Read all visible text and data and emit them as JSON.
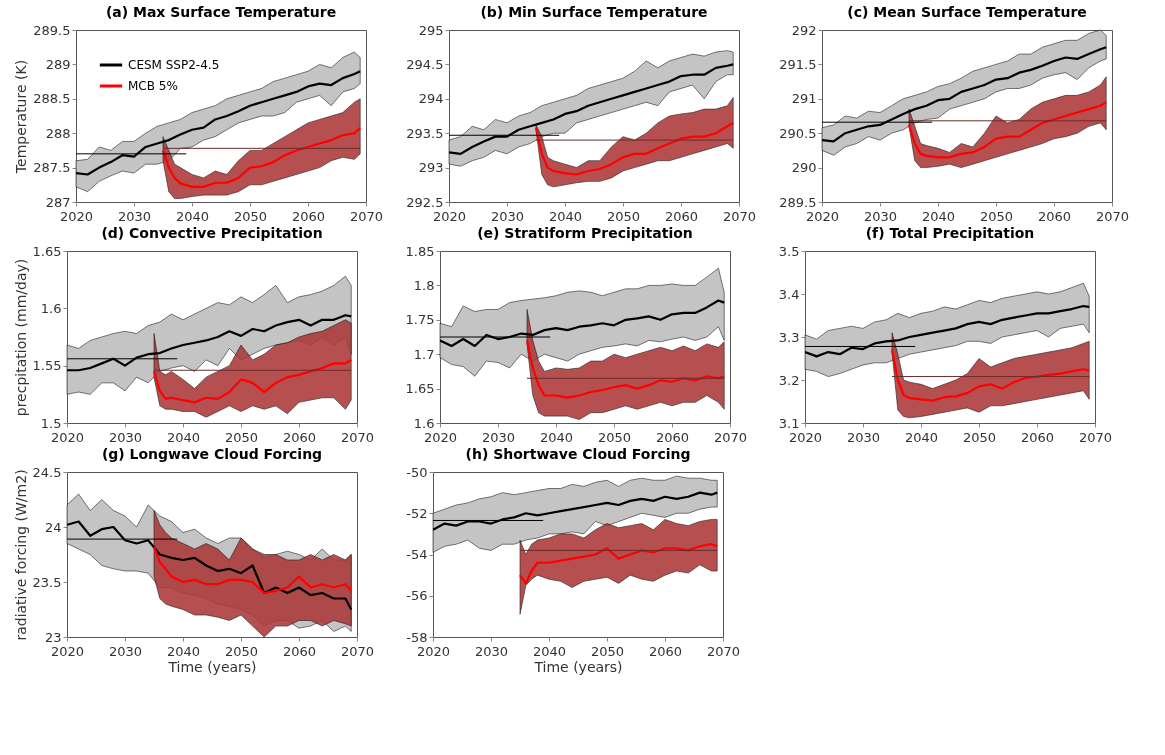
{
  "chart_data": [
    {
      "type": "line",
      "title": "(a) Max Surface Temperature",
      "ylabel": "Temperature (K)",
      "xlim": [
        2020,
        2070
      ],
      "xticks": [
        2020,
        2030,
        2040,
        2050,
        2060,
        2070
      ],
      "ylim": [
        287,
        289.5
      ],
      "yticks": [
        287,
        287.5,
        288,
        288.5,
        289,
        289.5
      ],
      "legend": "top left",
      "series": [
        {
          "name": "CESM SSP2-4.5",
          "color": "#000000",
          "x": [
            2020,
            2022,
            2024,
            2026,
            2028,
            2030,
            2032,
            2034,
            2036,
            2038,
            2040,
            2042,
            2044,
            2046,
            2048,
            2050,
            2052,
            2054,
            2056,
            2058,
            2060,
            2062,
            2064,
            2066,
            2068,
            2069
          ],
          "values": [
            287.42,
            287.4,
            287.5,
            287.58,
            287.68,
            287.66,
            287.8,
            287.85,
            287.9,
            287.98,
            288.05,
            288.08,
            288.2,
            288.25,
            288.32,
            288.4,
            288.45,
            288.5,
            288.55,
            288.6,
            288.68,
            288.72,
            288.7,
            288.8,
            288.86,
            288.9
          ],
          "lower": [
            287.22,
            287.15,
            287.3,
            287.38,
            287.45,
            287.42,
            287.55,
            287.55,
            287.6,
            287.78,
            287.8,
            287.9,
            287.95,
            288.05,
            288.15,
            288.2,
            288.25,
            288.25,
            288.3,
            288.45,
            288.5,
            288.55,
            288.4,
            288.6,
            288.65,
            288.72
          ],
          "upper": [
            287.6,
            287.62,
            287.8,
            287.75,
            287.88,
            287.88,
            288.0,
            288.1,
            288.15,
            288.2,
            288.3,
            288.35,
            288.4,
            288.5,
            288.55,
            288.6,
            288.65,
            288.75,
            288.8,
            288.85,
            288.9,
            289.0,
            288.95,
            289.1,
            289.18,
            289.1
          ]
        },
        {
          "name": "MCB 5%",
          "color": "#ff0000",
          "x": [
            2035,
            2036,
            2037,
            2038,
            2040,
            2042,
            2044,
            2046,
            2048,
            2050,
            2052,
            2054,
            2056,
            2058,
            2060,
            2062,
            2064,
            2066,
            2068,
            2069
          ],
          "values": [
            287.75,
            287.5,
            287.35,
            287.27,
            287.22,
            287.22,
            287.28,
            287.28,
            287.35,
            287.5,
            287.52,
            287.58,
            287.68,
            287.75,
            287.8,
            287.85,
            287.9,
            287.97,
            288.0,
            288.08
          ],
          "lower": [
            287.6,
            287.15,
            287.05,
            287.05,
            287.08,
            287.1,
            287.1,
            287.1,
            287.15,
            287.25,
            287.25,
            287.3,
            287.35,
            287.4,
            287.45,
            287.5,
            287.6,
            287.65,
            287.62,
            287.7
          ],
          "upper": [
            287.95,
            287.75,
            287.55,
            287.5,
            287.4,
            287.35,
            287.45,
            287.4,
            287.6,
            287.75,
            287.75,
            287.85,
            287.95,
            288.05,
            288.15,
            288.2,
            288.25,
            288.3,
            288.45,
            288.5
          ]
        },
        {
          "color": "#000000",
          "x": [
            2020,
            2039
          ],
          "values": [
            287.7,
            287.7
          ]
        },
        {
          "color": "#6b2a2a",
          "x": [
            2035,
            2069
          ],
          "values": [
            287.78,
            287.78
          ]
        }
      ]
    },
    {
      "type": "line",
      "title": "(b) Min Surface Temperature",
      "xlim": [
        2020,
        2070
      ],
      "xticks": [
        2020,
        2030,
        2040,
        2050,
        2060,
        2070
      ],
      "ylim": [
        292.5,
        295
      ],
      "yticks": [
        292.5,
        293,
        293.5,
        294,
        294.5,
        295
      ],
      "series": [
        {
          "color": "#000000",
          "x": [
            2020,
            2022,
            2024,
            2026,
            2028,
            2030,
            2032,
            2034,
            2036,
            2038,
            2040,
            2042,
            2044,
            2046,
            2048,
            2050,
            2052,
            2054,
            2056,
            2058,
            2060,
            2062,
            2064,
            2066,
            2068,
            2069
          ],
          "values": [
            293.22,
            293.2,
            293.3,
            293.38,
            293.45,
            293.45,
            293.55,
            293.6,
            293.65,
            293.7,
            293.78,
            293.82,
            293.9,
            293.95,
            294.0,
            294.05,
            294.1,
            294.15,
            294.2,
            294.25,
            294.33,
            294.35,
            294.35,
            294.45,
            294.48,
            294.5
          ],
          "lower": [
            293.05,
            293.02,
            293.1,
            293.15,
            293.25,
            293.2,
            293.3,
            293.35,
            293.45,
            293.5,
            293.5,
            293.65,
            293.7,
            293.75,
            293.8,
            293.85,
            293.9,
            293.95,
            293.9,
            294.1,
            294.15,
            294.2,
            294.0,
            294.25,
            294.35,
            294.35
          ],
          "upper": [
            293.4,
            293.45,
            293.6,
            293.55,
            293.7,
            293.65,
            293.75,
            293.8,
            293.9,
            293.95,
            294.0,
            294.05,
            294.15,
            294.2,
            294.25,
            294.3,
            294.4,
            294.55,
            294.45,
            294.55,
            294.6,
            294.65,
            294.62,
            294.68,
            294.7,
            294.68
          ]
        },
        {
          "color": "#ff0000",
          "x": [
            2035,
            2036,
            2037,
            2038,
            2040,
            2042,
            2044,
            2046,
            2048,
            2050,
            2052,
            2054,
            2056,
            2058,
            2060,
            2062,
            2064,
            2066,
            2068,
            2069
          ],
          "values": [
            293.58,
            293.2,
            293.0,
            292.95,
            292.92,
            292.9,
            292.95,
            292.98,
            293.05,
            293.15,
            293.2,
            293.2,
            293.28,
            293.35,
            293.42,
            293.45,
            293.45,
            293.5,
            293.6,
            293.65
          ],
          "lower": [
            293.55,
            292.9,
            292.75,
            292.72,
            292.75,
            292.78,
            292.8,
            292.8,
            292.85,
            292.95,
            293.0,
            293.05,
            293.1,
            293.1,
            293.15,
            293.2,
            293.25,
            293.3,
            293.35,
            293.28
          ],
          "upper": [
            293.62,
            293.45,
            293.15,
            293.1,
            293.05,
            293.0,
            293.1,
            293.1,
            293.3,
            293.45,
            293.4,
            293.5,
            293.65,
            293.75,
            293.78,
            293.8,
            293.85,
            293.85,
            293.9,
            294.02
          ]
        },
        {
          "color": "#000000",
          "x": [
            2020,
            2039
          ],
          "values": [
            293.47,
            293.47
          ]
        },
        {
          "color": "#6b2a2a",
          "x": [
            2035,
            2069
          ],
          "values": [
            293.4,
            293.4
          ]
        }
      ]
    },
    {
      "type": "line",
      "title": "(c) Mean Surface Temperature",
      "xlim": [
        2020,
        2070
      ],
      "xticks": [
        2020,
        2030,
        2040,
        2050,
        2060,
        2070
      ],
      "ylim": [
        289.5,
        292
      ],
      "yticks": [
        289.5,
        290,
        290.5,
        291,
        291.5,
        292
      ],
      "series": [
        {
          "color": "#000000",
          "x": [
            2020,
            2022,
            2024,
            2026,
            2028,
            2030,
            2032,
            2034,
            2036,
            2038,
            2040,
            2042,
            2044,
            2046,
            2048,
            2050,
            2052,
            2054,
            2056,
            2058,
            2060,
            2062,
            2064,
            2066,
            2068,
            2069
          ],
          "values": [
            290.4,
            290.38,
            290.5,
            290.55,
            290.6,
            290.62,
            290.7,
            290.78,
            290.85,
            290.9,
            290.98,
            291.0,
            291.1,
            291.15,
            291.2,
            291.28,
            291.3,
            291.38,
            291.42,
            291.48,
            291.55,
            291.6,
            291.58,
            291.65,
            291.72,
            291.75
          ],
          "lower": [
            290.25,
            290.18,
            290.3,
            290.35,
            290.45,
            290.4,
            290.5,
            290.55,
            290.65,
            290.7,
            290.72,
            290.85,
            290.9,
            290.95,
            291.0,
            291.1,
            291.15,
            291.15,
            291.2,
            291.3,
            291.35,
            291.38,
            291.28,
            291.45,
            291.55,
            291.58
          ],
          "upper": [
            290.58,
            290.62,
            290.75,
            290.72,
            290.82,
            290.8,
            290.9,
            291.0,
            291.05,
            291.1,
            291.18,
            291.22,
            291.3,
            291.4,
            291.45,
            291.5,
            291.55,
            291.65,
            291.65,
            291.75,
            291.8,
            291.85,
            291.85,
            291.95,
            292.0,
            291.92
          ]
        },
        {
          "color": "#ff0000",
          "x": [
            2035,
            2036,
            2037,
            2038,
            2040,
            2042,
            2044,
            2046,
            2048,
            2050,
            2052,
            2054,
            2056,
            2058,
            2060,
            2062,
            2064,
            2066,
            2068,
            2069
          ],
          "values": [
            290.62,
            290.35,
            290.2,
            290.17,
            290.15,
            290.15,
            290.2,
            290.22,
            290.3,
            290.42,
            290.45,
            290.45,
            290.55,
            290.65,
            290.7,
            290.75,
            290.8,
            290.85,
            290.9,
            290.95
          ],
          "lower": [
            290.6,
            290.1,
            290.0,
            290.0,
            290.02,
            290.05,
            290.0,
            290.05,
            290.1,
            290.15,
            290.2,
            290.25,
            290.3,
            290.35,
            290.42,
            290.45,
            290.5,
            290.6,
            290.65,
            290.55
          ],
          "upper": [
            290.85,
            290.6,
            290.35,
            290.32,
            290.28,
            290.22,
            290.35,
            290.3,
            290.5,
            290.75,
            290.65,
            290.7,
            290.85,
            290.95,
            291.0,
            291.05,
            291.05,
            291.1,
            291.2,
            291.32
          ]
        },
        {
          "color": "#000000",
          "x": [
            2020,
            2039
          ],
          "values": [
            290.66,
            290.66
          ]
        },
        {
          "color": "#6b2a2a",
          "x": [
            2035,
            2069
          ],
          "values": [
            290.68,
            290.68
          ]
        }
      ]
    },
    {
      "type": "line",
      "title": "(d) Convective Precipitation",
      "ylabel": "precpitation (mm/day)",
      "xlim": [
        2020,
        2070
      ],
      "xticks": [
        2020,
        2030,
        2040,
        2050,
        2060,
        2070
      ],
      "ylim": [
        1.5,
        1.65
      ],
      "yticks": [
        1.5,
        1.55,
        1.6,
        1.65
      ],
      "series": [
        {
          "color": "#000000",
          "x": [
            2020,
            2022,
            2024,
            2026,
            2028,
            2030,
            2032,
            2034,
            2036,
            2038,
            2040,
            2042,
            2044,
            2046,
            2048,
            2050,
            2052,
            2054,
            2056,
            2058,
            2060,
            2062,
            2064,
            2066,
            2068,
            2069
          ],
          "values": [
            1.546,
            1.546,
            1.548,
            1.552,
            1.556,
            1.55,
            1.557,
            1.56,
            1.561,
            1.565,
            1.568,
            1.57,
            1.572,
            1.575,
            1.58,
            1.576,
            1.582,
            1.58,
            1.585,
            1.588,
            1.59,
            1.585,
            1.59,
            1.59,
            1.594,
            1.593
          ],
          "lower": [
            1.525,
            1.527,
            1.525,
            1.535,
            1.535,
            1.528,
            1.54,
            1.535,
            1.545,
            1.548,
            1.55,
            1.545,
            1.555,
            1.55,
            1.565,
            1.555,
            1.56,
            1.565,
            1.568,
            1.57,
            1.572,
            1.568,
            1.575,
            1.568,
            1.575,
            1.56
          ],
          "upper": [
            1.568,
            1.565,
            1.572,
            1.575,
            1.578,
            1.58,
            1.578,
            1.585,
            1.588,
            1.595,
            1.59,
            1.595,
            1.6,
            1.605,
            1.603,
            1.61,
            1.605,
            1.612,
            1.62,
            1.605,
            1.61,
            1.612,
            1.615,
            1.62,
            1.628,
            1.62
          ]
        },
        {
          "color": "#ff0000",
          "x": [
            2035,
            2036,
            2037,
            2038,
            2040,
            2042,
            2044,
            2046,
            2048,
            2050,
            2052,
            2054,
            2056,
            2058,
            2060,
            2062,
            2064,
            2066,
            2068,
            2069
          ],
          "values": [
            1.545,
            1.528,
            1.521,
            1.522,
            1.52,
            1.518,
            1.522,
            1.521,
            1.527,
            1.538,
            1.535,
            1.527,
            1.535,
            1.54,
            1.542,
            1.545,
            1.548,
            1.552,
            1.552,
            1.555
          ],
          "lower": [
            1.54,
            1.515,
            1.512,
            1.512,
            1.51,
            1.51,
            1.505,
            1.51,
            1.515,
            1.51,
            1.515,
            1.512,
            1.515,
            1.508,
            1.518,
            1.52,
            1.522,
            1.522,
            1.512,
            1.52
          ],
          "upper": [
            1.578,
            1.545,
            1.542,
            1.545,
            1.538,
            1.53,
            1.54,
            1.545,
            1.55,
            1.568,
            1.555,
            1.56,
            1.568,
            1.57,
            1.575,
            1.578,
            1.58,
            1.585,
            1.59,
            1.587
          ]
        },
        {
          "color": "#000000",
          "x": [
            2020,
            2039
          ],
          "values": [
            1.556,
            1.556
          ]
        },
        {
          "color": "#6b2a2a",
          "x": [
            2035,
            2069
          ],
          "values": [
            1.546,
            1.546
          ]
        }
      ]
    },
    {
      "type": "line",
      "title": "(e) Stratiform Precipitation",
      "xlim": [
        2020,
        2070
      ],
      "xticks": [
        2020,
        2030,
        2040,
        2050,
        2060,
        2070
      ],
      "ylim": [
        1.6,
        1.85
      ],
      "yticks": [
        1.6,
        1.65,
        1.7,
        1.75,
        1.8,
        1.85
      ],
      "series": [
        {
          "color": "#000000",
          "x": [
            2020,
            2022,
            2024,
            2026,
            2028,
            2030,
            2032,
            2034,
            2036,
            2038,
            2040,
            2042,
            2044,
            2046,
            2048,
            2050,
            2052,
            2054,
            2056,
            2058,
            2060,
            2062,
            2064,
            2066,
            2068,
            2069
          ],
          "values": [
            1.72,
            1.712,
            1.722,
            1.712,
            1.728,
            1.722,
            1.725,
            1.73,
            1.728,
            1.735,
            1.738,
            1.735,
            1.74,
            1.742,
            1.745,
            1.742,
            1.75,
            1.752,
            1.755,
            1.75,
            1.758,
            1.76,
            1.76,
            1.768,
            1.778,
            1.775
          ],
          "lower": [
            1.695,
            1.685,
            1.682,
            1.668,
            1.69,
            1.688,
            1.68,
            1.7,
            1.69,
            1.7,
            1.695,
            1.69,
            1.7,
            1.705,
            1.71,
            1.712,
            1.715,
            1.712,
            1.72,
            1.718,
            1.722,
            1.725,
            1.72,
            1.725,
            1.74,
            1.72
          ],
          "upper": [
            1.745,
            1.74,
            1.77,
            1.762,
            1.765,
            1.765,
            1.775,
            1.778,
            1.78,
            1.782,
            1.785,
            1.79,
            1.792,
            1.79,
            1.785,
            1.79,
            1.795,
            1.795,
            1.8,
            1.8,
            1.802,
            1.8,
            1.8,
            1.812,
            1.825,
            1.79
          ]
        },
        {
          "color": "#ff0000",
          "x": [
            2035,
            2036,
            2037,
            2038,
            2040,
            2042,
            2044,
            2046,
            2048,
            2050,
            2052,
            2054,
            2056,
            2058,
            2060,
            2062,
            2064,
            2066,
            2068,
            2069
          ],
          "values": [
            1.72,
            1.68,
            1.655,
            1.64,
            1.64,
            1.637,
            1.64,
            1.645,
            1.648,
            1.652,
            1.655,
            1.65,
            1.655,
            1.662,
            1.66,
            1.665,
            1.662,
            1.668,
            1.665,
            1.668
          ],
          "lower": [
            1.715,
            1.64,
            1.615,
            1.61,
            1.61,
            1.61,
            1.605,
            1.615,
            1.615,
            1.62,
            1.625,
            1.62,
            1.625,
            1.63,
            1.625,
            1.63,
            1.63,
            1.64,
            1.63,
            1.62
          ],
          "upper": [
            1.765,
            1.72,
            1.69,
            1.675,
            1.68,
            1.678,
            1.68,
            1.69,
            1.69,
            1.7,
            1.695,
            1.7,
            1.705,
            1.71,
            1.705,
            1.712,
            1.705,
            1.715,
            1.71,
            1.718
          ]
        },
        {
          "color": "#000000",
          "x": [
            2020,
            2039
          ],
          "values": [
            1.725,
            1.725
          ]
        },
        {
          "color": "#6b2a2a",
          "x": [
            2035,
            2069
          ],
          "values": [
            1.665,
            1.665
          ]
        }
      ]
    },
    {
      "type": "line",
      "title": "(f) Total Precipitation",
      "xlim": [
        2020,
        2070
      ],
      "xticks": [
        2020,
        2030,
        2040,
        2050,
        2060,
        2070
      ],
      "ylim": [
        3.1,
        3.5
      ],
      "yticks": [
        3.1,
        3.2,
        3.3,
        3.4,
        3.5
      ],
      "series": [
        {
          "color": "#000000",
          "x": [
            2020,
            2022,
            2024,
            2026,
            2028,
            2030,
            2032,
            2034,
            2036,
            2038,
            2040,
            2042,
            2044,
            2046,
            2048,
            2050,
            2052,
            2054,
            2056,
            2058,
            2060,
            2062,
            2064,
            2066,
            2068,
            2069
          ],
          "values": [
            3.265,
            3.255,
            3.265,
            3.26,
            3.275,
            3.272,
            3.285,
            3.29,
            3.292,
            3.3,
            3.305,
            3.31,
            3.315,
            3.32,
            3.33,
            3.335,
            3.33,
            3.34,
            3.345,
            3.35,
            3.355,
            3.355,
            3.36,
            3.365,
            3.372,
            3.37
          ],
          "lower": [
            3.225,
            3.22,
            3.208,
            3.215,
            3.225,
            3.235,
            3.24,
            3.24,
            3.25,
            3.26,
            3.265,
            3.27,
            3.275,
            3.28,
            3.29,
            3.29,
            3.285,
            3.3,
            3.305,
            3.31,
            3.315,
            3.3,
            3.32,
            3.325,
            3.33,
            3.31
          ],
          "upper": [
            3.305,
            3.295,
            3.315,
            3.32,
            3.325,
            3.32,
            3.335,
            3.34,
            3.355,
            3.345,
            3.355,
            3.36,
            3.37,
            3.365,
            3.375,
            3.385,
            3.38,
            3.39,
            3.395,
            3.4,
            3.405,
            3.4,
            3.405,
            3.415,
            3.425,
            3.395
          ]
        },
        {
          "color": "#ff0000",
          "x": [
            2035,
            2036,
            2037,
            2038,
            2040,
            2042,
            2044,
            2046,
            2048,
            2050,
            2052,
            2054,
            2056,
            2058,
            2060,
            2062,
            2064,
            2066,
            2068,
            2069
          ],
          "values": [
            3.27,
            3.2,
            3.165,
            3.158,
            3.155,
            3.152,
            3.16,
            3.162,
            3.17,
            3.185,
            3.19,
            3.18,
            3.195,
            3.205,
            3.208,
            3.212,
            3.215,
            3.22,
            3.225,
            3.222
          ],
          "lower": [
            3.265,
            3.13,
            3.115,
            3.112,
            3.115,
            3.12,
            3.125,
            3.13,
            3.135,
            3.125,
            3.14,
            3.14,
            3.145,
            3.15,
            3.155,
            3.16,
            3.165,
            3.17,
            3.175,
            3.155
          ],
          "upper": [
            3.31,
            3.26,
            3.2,
            3.195,
            3.19,
            3.18,
            3.19,
            3.2,
            3.215,
            3.25,
            3.23,
            3.24,
            3.25,
            3.255,
            3.26,
            3.265,
            3.27,
            3.275,
            3.285,
            3.29
          ]
        },
        {
          "color": "#000000",
          "x": [
            2020,
            2039
          ],
          "values": [
            3.278,
            3.278
          ]
        },
        {
          "color": "#6b2a2a",
          "x": [
            2035,
            2069
          ],
          "values": [
            3.208,
            3.208
          ]
        }
      ]
    },
    {
      "type": "line",
      "title": "(g) Longwave Cloud Forcing",
      "xlabel": "Time (years)",
      "ylabel": "radiative forcing (W/m2)",
      "xlim": [
        2020,
        2070
      ],
      "xticks": [
        2020,
        2030,
        2040,
        2050,
        2060,
        2070
      ],
      "ylim": [
        23,
        24.5
      ],
      "yticks": [
        23,
        23.5,
        24,
        24.5
      ],
      "series": [
        {
          "color": "#000000",
          "x": [
            2020,
            2022,
            2024,
            2026,
            2028,
            2030,
            2032,
            2034,
            2036,
            2038,
            2040,
            2042,
            2044,
            2046,
            2048,
            2050,
            2052,
            2054,
            2056,
            2058,
            2060,
            2062,
            2064,
            2066,
            2068,
            2069
          ],
          "values": [
            24.02,
            24.05,
            23.92,
            23.98,
            24.0,
            23.88,
            23.85,
            23.88,
            23.75,
            23.72,
            23.7,
            23.72,
            23.65,
            23.6,
            23.62,
            23.58,
            23.65,
            23.4,
            23.45,
            23.4,
            23.45,
            23.38,
            23.4,
            23.35,
            23.35,
            23.25
          ],
          "lower": [
            23.85,
            23.8,
            23.75,
            23.65,
            23.62,
            23.6,
            23.6,
            23.58,
            23.45,
            23.45,
            23.4,
            23.38,
            23.35,
            23.3,
            23.28,
            23.25,
            23.2,
            23.1,
            23.15,
            23.15,
            23.08,
            23.1,
            23.15,
            23.05,
            23.1,
            23.05
          ],
          "upper": [
            24.2,
            24.3,
            24.15,
            24.25,
            24.15,
            24.1,
            24.0,
            24.2,
            24.1,
            24.05,
            23.95,
            23.98,
            23.9,
            23.85,
            23.9,
            23.9,
            23.8,
            23.72,
            23.75,
            23.78,
            23.75,
            23.7,
            23.8,
            23.7,
            23.7,
            23.75
          ]
        },
        {
          "color": "#ff0000",
          "x": [
            2035,
            2036,
            2037,
            2038,
            2040,
            2042,
            2044,
            2046,
            2048,
            2050,
            2052,
            2054,
            2056,
            2058,
            2060,
            2062,
            2064,
            2066,
            2068,
            2069
          ],
          "values": [
            23.82,
            23.68,
            23.62,
            23.55,
            23.5,
            23.52,
            23.48,
            23.48,
            23.52,
            23.52,
            23.5,
            23.4,
            23.42,
            23.45,
            23.55,
            23.45,
            23.48,
            23.45,
            23.48,
            23.42
          ],
          "lower": [
            23.55,
            23.35,
            23.3,
            23.28,
            23.25,
            23.2,
            23.2,
            23.18,
            23.15,
            23.2,
            23.1,
            23.0,
            23.1,
            23.1,
            23.15,
            23.15,
            23.1,
            23.15,
            23.12,
            23.1
          ],
          "upper": [
            24.15,
            24.02,
            23.95,
            23.9,
            23.85,
            23.8,
            23.85,
            23.8,
            23.7,
            23.9,
            23.8,
            23.75,
            23.75,
            23.7,
            23.7,
            23.75,
            23.7,
            23.75,
            23.7,
            23.75
          ]
        },
        {
          "color": "#000000",
          "x": [
            2020,
            2039
          ],
          "values": [
            23.89,
            23.89
          ]
        }
      ]
    },
    {
      "type": "line",
      "title": "(h) Shortwave Cloud Forcing",
      "xlabel": "Time (years)",
      "xlim": [
        2020,
        2070
      ],
      "xticks": [
        2020,
        2030,
        2040,
        2050,
        2060,
        2070
      ],
      "ylim": [
        -58,
        -50
      ],
      "yticks": [
        -58,
        -56,
        -54,
        -52,
        -50
      ],
      "series": [
        {
          "color": "#000000",
          "x": [
            2020,
            2022,
            2024,
            2026,
            2028,
            2030,
            2032,
            2034,
            2036,
            2038,
            2040,
            2042,
            2044,
            2046,
            2048,
            2050,
            2052,
            2054,
            2056,
            2058,
            2060,
            2062,
            2064,
            2066,
            2068,
            2069
          ],
          "values": [
            -52.8,
            -52.5,
            -52.6,
            -52.4,
            -52.4,
            -52.5,
            -52.3,
            -52.2,
            -52.0,
            -52.1,
            -52.0,
            -51.9,
            -51.8,
            -51.7,
            -51.6,
            -51.5,
            -51.6,
            -51.4,
            -51.3,
            -51.4,
            -51.2,
            -51.3,
            -51.2,
            -51.0,
            -51.1,
            -51.0
          ],
          "lower": [
            -53.9,
            -53.6,
            -53.5,
            -53.3,
            -53.7,
            -53.8,
            -53.5,
            -53.5,
            -53.3,
            -53.2,
            -53.0,
            -53.0,
            -52.9,
            -53.0,
            -52.4,
            -52.6,
            -52.4,
            -52.2,
            -52.0,
            -52.1,
            -52.2,
            -52.0,
            -52.0,
            -51.8,
            -51.7,
            -51.7
          ],
          "upper": [
            -52.0,
            -51.8,
            -51.6,
            -51.5,
            -51.3,
            -51.2,
            -51.0,
            -51.1,
            -51.0,
            -50.9,
            -50.8,
            -50.8,
            -50.6,
            -50.7,
            -50.5,
            -50.4,
            -50.7,
            -50.4,
            -50.3,
            -50.4,
            -50.4,
            -50.2,
            -50.3,
            -50.3,
            -50.4,
            -50.4
          ]
        },
        {
          "color": "#ff0000",
          "x": [
            2035,
            2036,
            2037,
            2038,
            2040,
            2042,
            2044,
            2046,
            2048,
            2050,
            2052,
            2054,
            2056,
            2058,
            2060,
            2062,
            2064,
            2066,
            2068,
            2069
          ],
          "values": [
            -55.0,
            -55.4,
            -54.8,
            -54.4,
            -54.4,
            -54.3,
            -54.2,
            -54.1,
            -54.0,
            -53.7,
            -54.2,
            -54.0,
            -53.8,
            -53.9,
            -53.7,
            -53.7,
            -53.8,
            -53.6,
            -53.5,
            -53.6
          ],
          "lower": [
            -56.9,
            -55.5,
            -55.2,
            -55.0,
            -55.2,
            -55.3,
            -55.6,
            -55.3,
            -55.2,
            -55.1,
            -55.4,
            -55.0,
            -55.2,
            -55.3,
            -55.0,
            -54.8,
            -54.9,
            -54.5,
            -54.8,
            -54.8
          ],
          "upper": [
            -53.3,
            -54.0,
            -53.5,
            -53.3,
            -53.2,
            -53.0,
            -53.0,
            -53.2,
            -52.8,
            -52.5,
            -52.7,
            -52.6,
            -52.5,
            -52.8,
            -52.3,
            -52.5,
            -52.6,
            -52.4,
            -52.3,
            -52.3
          ]
        },
        {
          "color": "#000000",
          "x": [
            2020,
            2039
          ],
          "values": [
            -52.35,
            -52.35
          ]
        },
        {
          "color": "#6b2a2a",
          "x": [
            2035,
            2069
          ],
          "values": [
            -53.8,
            -53.8
          ]
        }
      ]
    }
  ]
}
